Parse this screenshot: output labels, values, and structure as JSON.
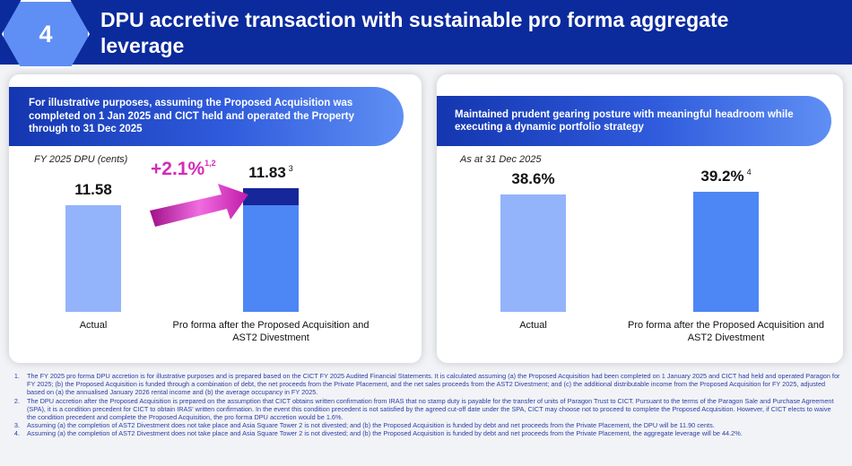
{
  "header": {
    "number": "4",
    "title": "DPU accretive transaction with sustainable pro forma aggregate leverage"
  },
  "left": {
    "banner": "For illustrative purposes, assuming the Proposed Acquisition was completed on 1 Jan 2025 and CICT held and operated the Property through to 31 Dec 2025",
    "accretion": "+2.1%",
    "accretion_note": "1,2"
  },
  "right": {
    "banner": "Maintained prudent gearing posture with meaningful headroom while executing a dynamic portfolio strategy"
  },
  "chart_data": [
    {
      "type": "bar",
      "title": "",
      "ylabel": "FY 2025 DPU (cents)",
      "categories": [
        "Actual",
        "Pro forma after the Proposed Acquisition and AST2 Divestment"
      ],
      "values": [
        11.58,
        11.83
      ],
      "labels": [
        "11.58",
        "11.83"
      ],
      "notes": [
        "",
        "3"
      ],
      "segments": [
        {
          "name": "base",
          "values": [
            11.58,
            11.58
          ],
          "color": "#4d86f5"
        },
        {
          "name": "accretion",
          "values": [
            0,
            0.25
          ],
          "color": "#16279a"
        }
      ],
      "colors": [
        "#93b4fb",
        "#4d86f5"
      ],
      "ylim": [
        10.09,
        12.0
      ]
    },
    {
      "type": "bar",
      "title": "",
      "ylabel": "As at 31 Dec 2025",
      "categories": [
        "Actual",
        "Pro forma after the Proposed Acquisition and AST2 Divestment"
      ],
      "values": [
        38.6,
        39.2
      ],
      "labels": [
        "38.6%",
        "39.2%"
      ],
      "notes": [
        "",
        "4"
      ],
      "colors": [
        "#93b4fb",
        "#4d86f5"
      ],
      "ylim": [
        12.4,
        42.0
      ]
    }
  ],
  "footnotes": [
    "The FY 2025 pro forma DPU accretion is for illustrative purposes and is prepared based on the CICT FY 2025 Audited Financial Statements. It is calculated assuming (a) the Proposed Acquisition had been completed on 1 January 2025 and CICT had held and operated Paragon for FY 2025; (b) the Proposed Acquisition is funded through a combination of debt, the net proceeds from the Private Placement, and the net sales proceeds from the AST2 Divestment; and (c) the additional distributable income from the Proposed Acquisition for FY 2025, adjusted based on (a) the annualised January 2026 rental income and (b) the average occupancy in FY 2025.",
    "The DPU accretion after the Proposed Acquisition is prepared on the assumption that CICT obtains written confirmation from IRAS that no stamp duty is payable for the transfer of units of Paragon Trust to CICT. Pursuant to the terms of the Paragon Sale and Purchase Agreement (SPA), it is a condition precedent for CICT to obtain IRAS' written confirmation. In the event this condition precedent is not satisfied by the agreed cut-off date under the SPA, CICT may choose not to proceed to complete the Proposed Acquisition. However, if CICT elects to waive the condition precedent and complete the Proposed Acquisition, the pro forma DPU accretion would be 1.6%.",
    "Assuming (a) the completion of AST2 Divestment does not take place and Asia Square Tower 2 is not divested; and (b) the Proposed Acquisition is funded by debt and net proceeds from the Private Placement, the DPU will be 11.90 cents.",
    "Assuming (a) the completion of AST2 Divestment does not take place and Asia Square Tower 2 is not divested; and (b) the Proposed Acquisition is funded by debt and net proceeds from the Private Placement, the aggregate leverage will be 44.2%."
  ]
}
